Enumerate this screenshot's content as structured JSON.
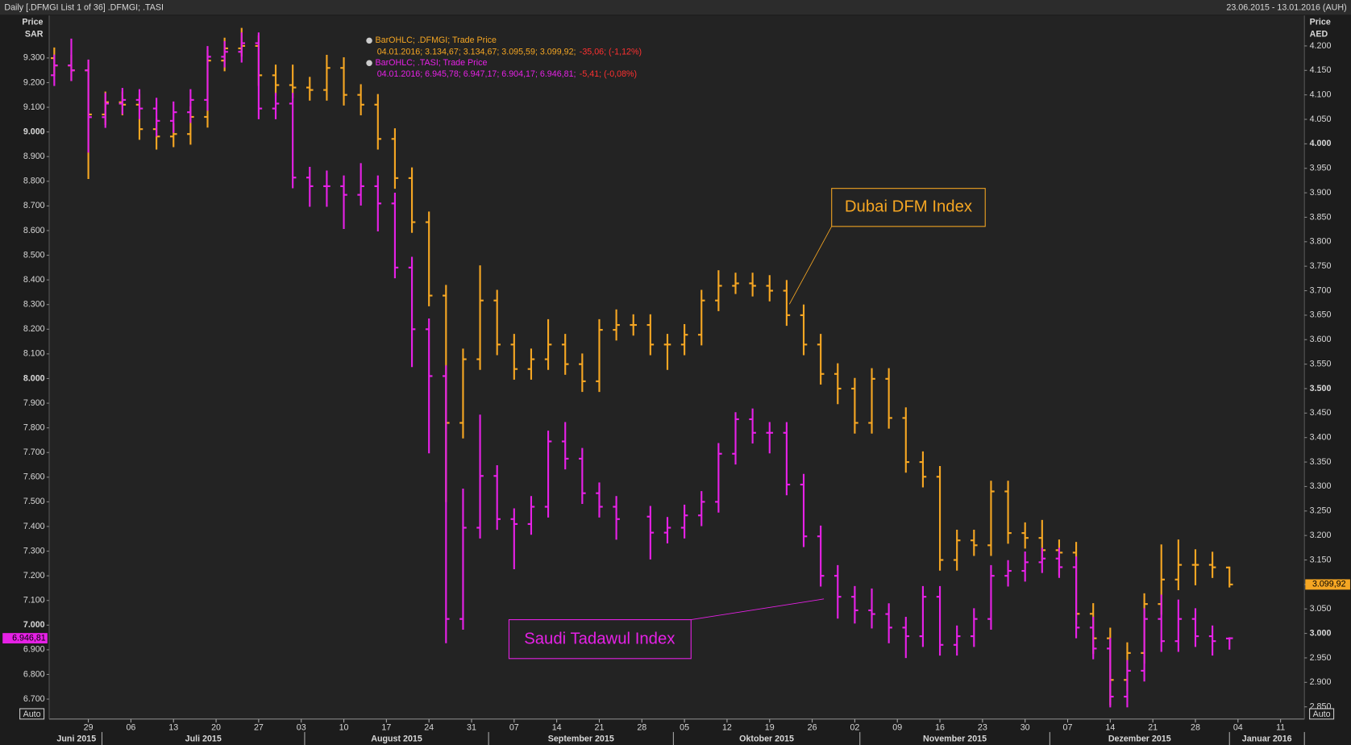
{
  "header": {
    "title": "Daily [.DFMGI List 1 of 36] .DFMGI; .TASI",
    "range": "23.06.2015 - 13.01.2016 (AUH)"
  },
  "chart_data": {
    "type": "ohlc",
    "y_title": [
      "Price",
      "SAR"
    ],
    "y2_title": [
      "Price",
      "AED"
    ],
    "auto_label": "Auto",
    "annotations": [
      "Dubai DFM Index",
      "Saudi Tadawul Index"
    ],
    "legend": [
      {
        "title": "BarOHLC; .DFMGI; Trade Price",
        "detail": "04.01.2016; 3.134,67; 3.134,67; 3.095,59; 3.099,92;",
        "change": "-35,06; (-1,12%)"
      },
      {
        "title": "BarOHLC; .TASI; Trade Price",
        "detail": "04.01.2016; 6.945,78; 6.947,17; 6.904,17; 6.946,81;",
        "change": "-5,41; (-0,08%)"
      }
    ],
    "x": [
      -4,
      -2,
      0,
      2,
      4,
      6,
      8,
      10,
      12,
      14,
      16,
      18,
      20,
      22,
      24,
      26,
      28,
      30,
      32,
      34,
      36,
      38,
      40,
      42,
      44,
      46,
      48,
      50,
      52,
      54,
      56,
      58,
      60,
      62,
      64,
      66,
      68,
      70,
      72,
      74,
      76,
      78,
      80,
      82,
      84,
      86,
      88,
      90,
      92,
      94,
      96,
      98,
      100,
      102,
      104,
      106,
      108,
      110,
      112,
      114,
      116,
      118,
      120,
      122,
      124,
      126,
      128,
      130,
      132,
      134
    ],
    "xlim": [
      -4.6,
      142.8
    ],
    "xticks": [
      {
        "value": 0,
        "label": "29"
      },
      {
        "value": 5,
        "label": "06"
      },
      {
        "value": 10,
        "label": "13"
      },
      {
        "value": 15,
        "label": "20"
      },
      {
        "value": 20,
        "label": "27"
      },
      {
        "value": 25,
        "label": "03"
      },
      {
        "value": 30,
        "label": "10"
      },
      {
        "value": 35,
        "label": "17"
      },
      {
        "value": 40,
        "label": "24"
      },
      {
        "value": 45,
        "label": "31"
      },
      {
        "value": 50,
        "label": "07"
      },
      {
        "value": 55,
        "label": "14"
      },
      {
        "value": 60,
        "label": "21"
      },
      {
        "value": 65,
        "label": "28"
      },
      {
        "value": 70,
        "label": "05"
      },
      {
        "value": 75,
        "label": "12"
      },
      {
        "value": 80,
        "label": "19"
      },
      {
        "value": 85,
        "label": "26"
      },
      {
        "value": 90,
        "label": "02"
      },
      {
        "value": 95,
        "label": "09"
      },
      {
        "value": 100,
        "label": "16"
      },
      {
        "value": 105,
        "label": "23"
      },
      {
        "value": 110,
        "label": "30"
      },
      {
        "value": 115,
        "label": "07"
      },
      {
        "value": 120,
        "label": "14"
      },
      {
        "value": 125,
        "label": "21"
      },
      {
        "value": 130,
        "label": "28"
      },
      {
        "value": 135,
        "label": "04"
      },
      {
        "value": 140,
        "label": "11"
      }
    ],
    "months": [
      "Juni 2015",
      "Juli 2015",
      "August 2015",
      "September 2015",
      "Oktober 2015",
      "November 2015",
      "Dezember 2015",
      "Januar 2016"
    ],
    "month_bounds": [
      -4.4,
      1.6,
      25.4,
      47,
      68.7,
      90.6,
      112.9,
      134,
      142.8
    ],
    "ylim": [
      6619,
      9472
    ],
    "yticks": [
      {
        "value": 6700,
        "label": "6.700"
      },
      {
        "value": 6800,
        "label": "6.800"
      },
      {
        "value": 6900,
        "label": "6.900"
      },
      {
        "value": 7000,
        "label": "7.000",
        "bold": true
      },
      {
        "value": 7100,
        "label": "7.100"
      },
      {
        "value": 7200,
        "label": "7.200"
      },
      {
        "value": 7300,
        "label": "7.300"
      },
      {
        "value": 7400,
        "label": "7.400"
      },
      {
        "value": 7500,
        "label": "7.500"
      },
      {
        "value": 7600,
        "label": "7.600"
      },
      {
        "value": 7700,
        "label": "7.700"
      },
      {
        "value": 7800,
        "label": "7.800"
      },
      {
        "value": 7900,
        "label": "7.900"
      },
      {
        "value": 8000,
        "label": "8.000",
        "bold": true
      },
      {
        "value": 8100,
        "label": "8.100"
      },
      {
        "value": 8200,
        "label": "8.200"
      },
      {
        "value": 8300,
        "label": "8.300"
      },
      {
        "value": 8400,
        "label": "8.400"
      },
      {
        "value": 8500,
        "label": "8.500"
      },
      {
        "value": 8600,
        "label": "8.600"
      },
      {
        "value": 8700,
        "label": "8.700"
      },
      {
        "value": 8800,
        "label": "8.800"
      },
      {
        "value": 8900,
        "label": "8.900"
      },
      {
        "value": 9000,
        "label": "9.000",
        "bold": true
      },
      {
        "value": 9100,
        "label": "9.100"
      },
      {
        "value": 9200,
        "label": "9.200"
      },
      {
        "value": 9300,
        "label": "9.300"
      }
    ],
    "y2lim": [
      2825,
      4262
    ],
    "y2ticks": [
      {
        "value": 2850,
        "label": "2.850"
      },
      {
        "value": 2900,
        "label": "2.900"
      },
      {
        "value": 2950,
        "label": "2.950"
      },
      {
        "value": 3000,
        "label": "3.000",
        "bold": true
      },
      {
        "value": 3050,
        "label": "3.050"
      },
      {
        "value": 3100,
        "label": "3.100"
      },
      {
        "value": 3150,
        "label": "3.150"
      },
      {
        "value": 3200,
        "label": "3.200"
      },
      {
        "value": 3250,
        "label": "3.250"
      },
      {
        "value": 3300,
        "label": "3.300"
      },
      {
        "value": 3350,
        "label": "3.350"
      },
      {
        "value": 3400,
        "label": "3.400"
      },
      {
        "value": 3450,
        "label": "3.450"
      },
      {
        "value": 3500,
        "label": "3.500",
        "bold": true
      },
      {
        "value": 3550,
        "label": "3.550"
      },
      {
        "value": 3600,
        "label": "3.600"
      },
      {
        "value": 3650,
        "label": "3.650"
      },
      {
        "value": 3700,
        "label": "3.700"
      },
      {
        "value": 3750,
        "label": "3.750"
      },
      {
        "value": 3800,
        "label": "3.800"
      },
      {
        "value": 3850,
        "label": "3.850"
      },
      {
        "value": 3900,
        "label": "3.900"
      },
      {
        "value": 3950,
        "label": "3.950"
      },
      {
        "value": 4000,
        "label": "4.000",
        "bold": true
      },
      {
        "value": 4050,
        "label": "4.050"
      },
      {
        "value": 4100,
        "label": "4.100"
      },
      {
        "value": 4150,
        "label": "4.150"
      },
      {
        "value": 4200,
        "label": "4.200"
      }
    ],
    "grid": false,
    "series": [
      {
        "name": ".DFMGI",
        "color": "#f5a623",
        "axis": "y2",
        "last_value_label": "3.099,92",
        "open": [
          4175,
          4160,
          4150,
          4060,
          4085,
          4080,
          4030,
          4015,
          4020,
          4055,
          4170,
          4195,
          4200,
          4140,
          4120,
          4115,
          4110,
          4155,
          4100,
          4080,
          4010,
          3930,
          3840,
          3690,
          3430,
          3560,
          3680,
          3590,
          3540,
          3560,
          3590,
          3550,
          3515,
          3620,
          3630,
          3630,
          3590,
          3590,
          3610,
          3680,
          3710,
          3715,
          3710,
          3700,
          3650,
          3590,
          3530,
          3500,
          3430,
          3520,
          3440,
          3350,
          3320,
          3150,
          3190,
          3180,
          3290,
          3205,
          3195,
          3170,
          3165,
          3040,
          2990,
          2905,
          2960,
          3060,
          3110,
          3140,
          3140,
          3134.67
        ],
        "high": [
          4195,
          4180,
          4170,
          4105,
          4105,
          4100,
          4050,
          4040,
          4075,
          4190,
          4215,
          4235,
          4220,
          4160,
          4160,
          4135,
          4180,
          4175,
          4120,
          4100,
          4030,
          3950,
          3860,
          3710,
          3580,
          3750,
          3700,
          3610,
          3580,
          3640,
          3610,
          3570,
          3640,
          3660,
          3650,
          3650,
          3610,
          3630,
          3700,
          3740,
          3735,
          3735,
          3730,
          3720,
          3670,
          3610,
          3550,
          3520,
          3540,
          3540,
          3460,
          3370,
          3340,
          3210,
          3210,
          3310,
          3310,
          3225,
          3230,
          3190,
          3185,
          3060,
          3010,
          2980,
          3080,
          3180,
          3190,
          3170,
          3165,
          3134.67
        ],
        "low": [
          4140,
          4130,
          3930,
          4040,
          4060,
          4010,
          3990,
          3995,
          4000,
          4035,
          4150,
          4180,
          4120,
          4100,
          4095,
          4090,
          4090,
          4080,
          4060,
          3990,
          3910,
          3820,
          3670,
          3270,
          3400,
          3540,
          3570,
          3520,
          3520,
          3540,
          3530,
          3495,
          3495,
          3600,
          3610,
          3570,
          3540,
          3570,
          3590,
          3660,
          3695,
          3690,
          3680,
          3630,
          3570,
          3510,
          3470,
          3410,
          3410,
          3420,
          3330,
          3300,
          3130,
          3130,
          3160,
          3160,
          3185,
          3175,
          3150,
          3120,
          3020,
          2960,
          2855,
          2885,
          2940,
          3040,
          3090,
          3100,
          3115,
          3095.59
        ],
        "close": [
          4160,
          4150,
          4060,
          4085,
          4080,
          4030,
          4015,
          4020,
          4055,
          4170,
          4195,
          4200,
          4140,
          4120,
          4115,
          4110,
          4155,
          4100,
          4080,
          4010,
          3930,
          3840,
          3690,
          3430,
          3560,
          3680,
          3590,
          3540,
          3560,
          3590,
          3550,
          3515,
          3620,
          3630,
          3630,
          3590,
          3590,
          3610,
          3680,
          3710,
          3715,
          3710,
          3700,
          3650,
          3590,
          3530,
          3500,
          3430,
          3520,
          3440,
          3350,
          3320,
          3150,
          3190,
          3180,
          3290,
          3205,
          3195,
          3170,
          3165,
          3040,
          2990,
          2905,
          2960,
          3060,
          3110,
          3140,
          3140,
          3135,
          3099.92
        ]
      },
      {
        "name": ".TASI",
        "color": "#e621e6",
        "axis": "y",
        "last_value_label": "6.946,81",
        "open": [
          9230,
          9270,
          9250,
          9060,
          9115,
          9130,
          9095,
          9045,
          9080,
          9130,
          9305,
          9325,
          9360,
          9095,
          9115,
          8815,
          8780,
          8780,
          8745,
          8780,
          8710,
          8450,
          8200,
          8010,
          7025,
          7395,
          7605,
          7430,
          7410,
          7480,
          7745,
          7675,
          7535,
          7480,
          null,
          7440,
          7375,
          7395,
          7445,
          7500,
          7695,
          7835,
          7780,
          7780,
          7570,
          7360,
          7200,
          7115,
          7060,
          7045,
          6990,
          6955,
          7115,
          6920,
          6955,
          7025,
          7200,
          7220,
          7255,
          7270,
          7235,
          6990,
          6905,
          6710,
          6815,
          7025,
          6935,
          7025,
          6955,
          6945.78
        ],
        "high": [
          9310,
          9375,
          9290,
          9155,
          9175,
          9170,
          9135,
          9120,
          9170,
          9345,
          9365,
          9400,
          9400,
          9155,
          9155,
          8855,
          8840,
          8820,
          8870,
          8820,
          8750,
          8490,
          8240,
          8050,
          7550,
          7850,
          7645,
          7470,
          7520,
          7785,
          7820,
          7715,
          7575,
          7520,
          null,
          7480,
          7435,
          7485,
          7540,
          7735,
          7860,
          7875,
          7820,
          7820,
          7610,
          7400,
          7240,
          7155,
          7145,
          7085,
          7030,
          7155,
          7155,
          6995,
          7065,
          7240,
          7260,
          7295,
          7310,
          7310,
          7275,
          7030,
          6945,
          6855,
          7065,
          7120,
          7100,
          7065,
          6995,
          6947.17
        ],
        "low": [
          9190,
          9210,
          8920,
          9020,
          9075,
          9055,
          8985,
          9000,
          9040,
          9090,
          9265,
          9285,
          9055,
          9055,
          8775,
          8700,
          8700,
          8610,
          8705,
          8600,
          8410,
          8050,
          7700,
          6930,
          6985,
          7355,
          7390,
          7230,
          7370,
          7440,
          7635,
          7495,
          7440,
          7350,
          null,
          7270,
          7335,
          7355,
          7405,
          7460,
          7655,
          7740,
          7700,
          7530,
          7320,
          7160,
          7030,
          7010,
          6990,
          6930,
          6870,
          6915,
          6880,
          6880,
          6915,
          6985,
          7160,
          7180,
          7215,
          7195,
          6950,
          6865,
          6670,
          6670,
          6775,
          6895,
          6895,
          6915,
          6880,
          6904.17
        ],
        "close": [
          9270,
          9250,
          9060,
          9115,
          9130,
          9095,
          9045,
          9080,
          9130,
          9305,
          9325,
          9360,
          9095,
          9115,
          8815,
          8780,
          8780,
          8745,
          8780,
          8710,
          8450,
          8200,
          8010,
          7025,
          7395,
          7605,
          7430,
          7410,
          7480,
          7745,
          7675,
          7535,
          7480,
          7430,
          null,
          7375,
          7395,
          7445,
          7500,
          7695,
          7835,
          7780,
          7780,
          7570,
          7360,
          7200,
          7115,
          7060,
          7045,
          6990,
          6955,
          7115,
          6920,
          6955,
          7025,
          7200,
          7220,
          7255,
          7270,
          7235,
          6990,
          6905,
          6710,
          6815,
          7025,
          6935,
          7025,
          6955,
          6935,
          6946.81
        ]
      }
    ]
  }
}
